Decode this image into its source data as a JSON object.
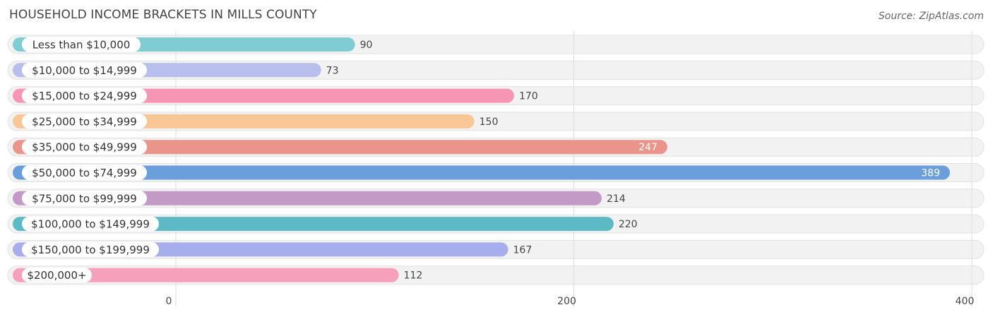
{
  "header": {
    "title": "HOUSEHOLD INCOME BRACKETS IN MILLS COUNTY",
    "source": "Source: ZipAtlas.com"
  },
  "chart_data": {
    "type": "bar",
    "orientation": "horizontal",
    "title": "HOUSEHOLD INCOME BRACKETS IN MILLS COUNTY",
    "categories": [
      "Less than $10,000",
      "$10,000 to $14,999",
      "$15,000 to $24,999",
      "$25,000 to $34,999",
      "$35,000 to $49,999",
      "$50,000 to $74,999",
      "$75,000 to $99,999",
      "$100,000 to $149,999",
      "$150,000 to $199,999",
      "$200,000+"
    ],
    "values": [
      90,
      73,
      170,
      150,
      247,
      389,
      214,
      220,
      167,
      112
    ],
    "colors": [
      "#7fcdd3",
      "#b8bfec",
      "#f795b4",
      "#f9c796",
      "#eb948b",
      "#6a9fdc",
      "#c39ac6",
      "#5bbac6",
      "#a8adeb",
      "#f6a0bb"
    ],
    "xlim": [
      0,
      400
    ],
    "xticks": [
      0,
      200,
      400
    ],
    "grid": true
  }
}
